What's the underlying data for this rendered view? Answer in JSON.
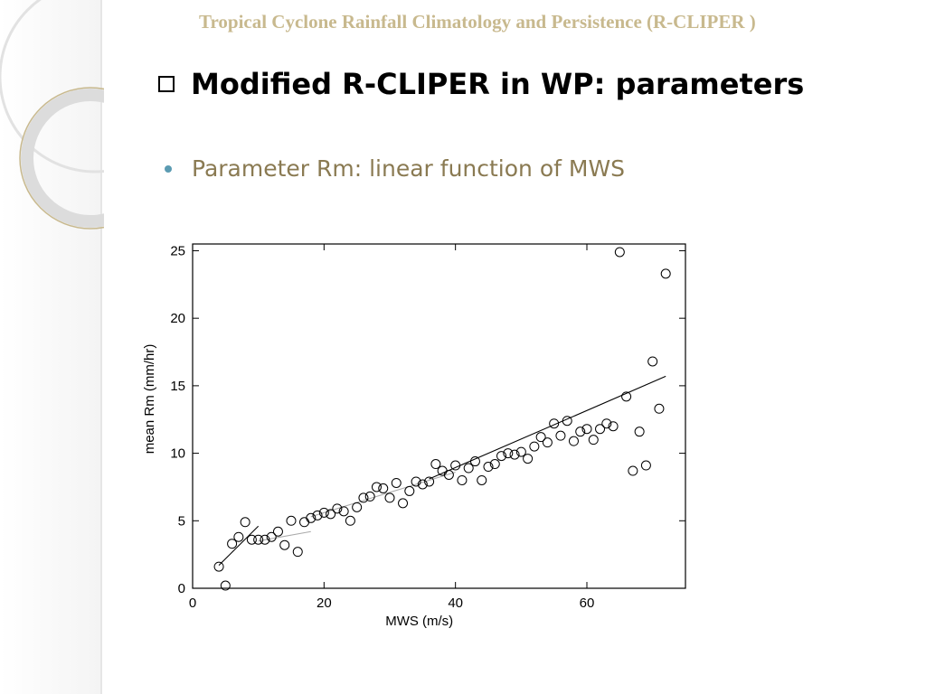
{
  "slide": {
    "header": "Tropical Cyclone Rainfall Climatology and Persistence (R-CLIPER )",
    "title": "Modified R-CLIPER in WP: parameters",
    "bullet": "Parameter Rm: linear function of MWS"
  },
  "colors": {
    "header": "#c8b98e",
    "bullet_text": "#8a7a52",
    "bullet_dot": "#5b9bb2",
    "deco_ring": "#d9d9d9"
  },
  "chart_data": {
    "type": "scatter",
    "xlabel": "MWS (m/s)",
    "ylabel": "mean Rm (mm/hr)",
    "xlim": [
      0,
      75
    ],
    "ylim": [
      0,
      25.5
    ],
    "xticks": [
      0,
      20,
      40,
      60
    ],
    "yticks": [
      0,
      5,
      10,
      15,
      20,
      25
    ],
    "grid": false,
    "points": [
      [
        4,
        1.6
      ],
      [
        5,
        0.2
      ],
      [
        6,
        3.3
      ],
      [
        7,
        3.8
      ],
      [
        8,
        4.9
      ],
      [
        9,
        3.6
      ],
      [
        10,
        3.6
      ],
      [
        11,
        3.6
      ],
      [
        12,
        3.8
      ],
      [
        13,
        4.2
      ],
      [
        14,
        3.2
      ],
      [
        15,
        5.0
      ],
      [
        16,
        2.7
      ],
      [
        17,
        4.9
      ],
      [
        18,
        5.2
      ],
      [
        19,
        5.4
      ],
      [
        20,
        5.6
      ],
      [
        21,
        5.5
      ],
      [
        22,
        5.9
      ],
      [
        23,
        5.7
      ],
      [
        24,
        5.0
      ],
      [
        25,
        6.0
      ],
      [
        26,
        6.7
      ],
      [
        27,
        6.8
      ],
      [
        28,
        7.5
      ],
      [
        29,
        7.4
      ],
      [
        30,
        6.7
      ],
      [
        31,
        7.8
      ],
      [
        32,
        6.3
      ],
      [
        33,
        7.2
      ],
      [
        34,
        7.9
      ],
      [
        35,
        7.7
      ],
      [
        36,
        7.9
      ],
      [
        37,
        9.2
      ],
      [
        38,
        8.7
      ],
      [
        39,
        8.4
      ],
      [
        40,
        9.1
      ],
      [
        41,
        8.0
      ],
      [
        42,
        8.9
      ],
      [
        43,
        9.4
      ],
      [
        44,
        8.0
      ],
      [
        45,
        9.0
      ],
      [
        46,
        9.2
      ],
      [
        47,
        9.8
      ],
      [
        48,
        10.0
      ],
      [
        49,
        9.9
      ],
      [
        50,
        10.1
      ],
      [
        51,
        9.6
      ],
      [
        52,
        10.5
      ],
      [
        53,
        11.2
      ],
      [
        54,
        10.8
      ],
      [
        55,
        12.2
      ],
      [
        56,
        11.3
      ],
      [
        57,
        12.4
      ],
      [
        58,
        10.9
      ],
      [
        59,
        11.6
      ],
      [
        60,
        11.8
      ],
      [
        61,
        11.0
      ],
      [
        62,
        11.8
      ],
      [
        63,
        12.2
      ],
      [
        64,
        12.0
      ],
      [
        65,
        24.9
      ],
      [
        66,
        14.2
      ],
      [
        67,
        8.7
      ],
      [
        68,
        11.6
      ],
      [
        69,
        9.1
      ],
      [
        70,
        16.8
      ],
      [
        71,
        13.3
      ],
      [
        72,
        23.3
      ]
    ],
    "fit_lines": [
      {
        "x": [
          4,
          10
        ],
        "y": [
          1.7,
          4.6
        ],
        "color": "#000000"
      },
      {
        "x": [
          10,
          18
        ],
        "y": [
          3.5,
          4.2
        ],
        "color": "#aaaaaa"
      },
      {
        "x": [
          18,
          40
        ],
        "y": [
          5.3,
          8.6
        ],
        "color": "#aaaaaa"
      },
      {
        "x": [
          36,
          72
        ],
        "y": [
          8.1,
          15.7
        ],
        "color": "#000000"
      }
    ]
  }
}
